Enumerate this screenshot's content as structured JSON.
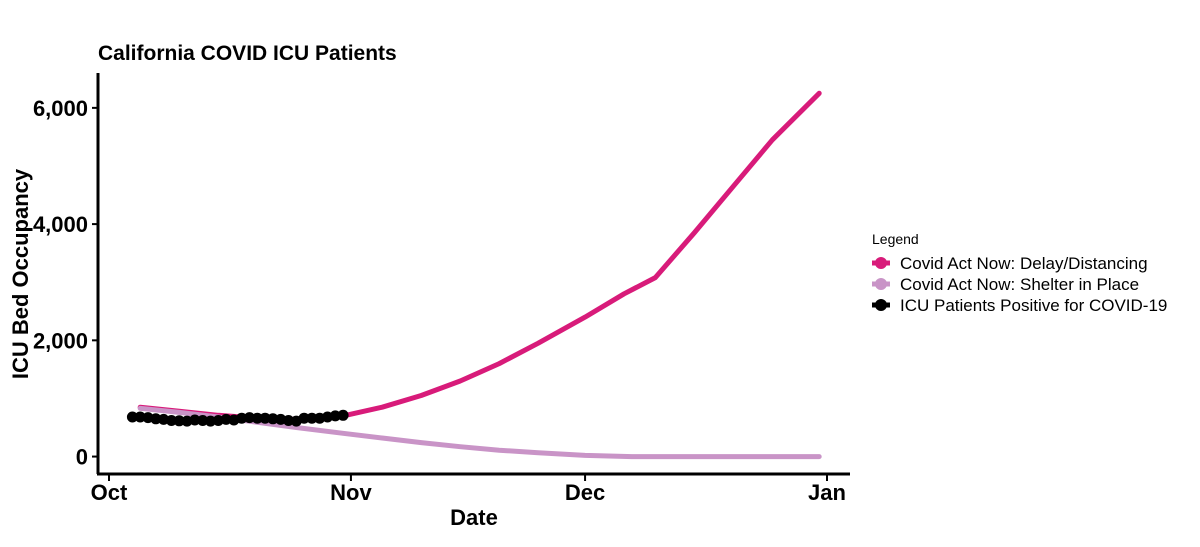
{
  "chart_data": {
    "type": "line",
    "title": "California COVID ICU Patients",
    "xlabel": "Date",
    "ylabel": "ICU Bed Occupancy",
    "xlim": [
      "2020-10-01",
      "2021-01-01"
    ],
    "ylim": [
      -300,
      6600
    ],
    "x_ticks": [
      "Oct",
      "Nov",
      "Dec",
      "Jan"
    ],
    "y_ticks": [
      {
        "value": 0,
        "label": "0"
      },
      {
        "value": 2000,
        "label": "2,000"
      },
      {
        "value": 4000,
        "label": "4,000"
      },
      {
        "value": 6000,
        "label": "6,000"
      }
    ],
    "grid": false,
    "legend": {
      "title": "Legend",
      "position": "right"
    },
    "series": [
      {
        "name": "Covid Act Now: Delay/Distancing",
        "color": "#d81b7a",
        "style": "line",
        "points": [
          {
            "x": "2020-10-05",
            "y": 850
          },
          {
            "x": "2020-10-10",
            "y": 780
          },
          {
            "x": "2020-10-15",
            "y": 710
          },
          {
            "x": "2020-10-20",
            "y": 660
          },
          {
            "x": "2020-10-25",
            "y": 640
          },
          {
            "x": "2020-10-31",
            "y": 700
          },
          {
            "x": "2020-11-05",
            "y": 850
          },
          {
            "x": "2020-11-10",
            "y": 1050
          },
          {
            "x": "2020-11-15",
            "y": 1300
          },
          {
            "x": "2020-11-20",
            "y": 1600
          },
          {
            "x": "2020-11-25",
            "y": 1950
          },
          {
            "x": "2020-12-01",
            "y": 2400
          },
          {
            "x": "2020-12-06",
            "y": 2800
          },
          {
            "x": "2020-12-10",
            "y": 3080
          },
          {
            "x": "2020-12-15",
            "y": 3850
          },
          {
            "x": "2020-12-20",
            "y": 4650
          },
          {
            "x": "2020-12-25",
            "y": 5450
          },
          {
            "x": "2020-12-31",
            "y": 6250
          }
        ]
      },
      {
        "name": "Covid Act Now: Shelter in Place",
        "color": "#c994c7",
        "style": "line",
        "points": [
          {
            "x": "2020-10-05",
            "y": 830
          },
          {
            "x": "2020-10-10",
            "y": 760
          },
          {
            "x": "2020-10-15",
            "y": 680
          },
          {
            "x": "2020-10-20",
            "y": 590
          },
          {
            "x": "2020-10-25",
            "y": 500
          },
          {
            "x": "2020-10-31",
            "y": 400
          },
          {
            "x": "2020-11-05",
            "y": 320
          },
          {
            "x": "2020-11-10",
            "y": 240
          },
          {
            "x": "2020-11-15",
            "y": 170
          },
          {
            "x": "2020-11-20",
            "y": 110
          },
          {
            "x": "2020-11-25",
            "y": 65
          },
          {
            "x": "2020-12-01",
            "y": 20
          },
          {
            "x": "2020-12-07",
            "y": 0
          },
          {
            "x": "2020-12-15",
            "y": 0
          },
          {
            "x": "2020-12-23",
            "y": 0
          },
          {
            "x": "2020-12-31",
            "y": 0
          }
        ]
      },
      {
        "name": "ICU Patients Positive for COVID-19",
        "color": "#000000",
        "style": "line+points",
        "points": [
          {
            "x": "2020-10-04",
            "y": 680
          },
          {
            "x": "2020-10-05",
            "y": 680
          },
          {
            "x": "2020-10-06",
            "y": 670
          },
          {
            "x": "2020-10-07",
            "y": 650
          },
          {
            "x": "2020-10-08",
            "y": 640
          },
          {
            "x": "2020-10-09",
            "y": 620
          },
          {
            "x": "2020-10-10",
            "y": 615
          },
          {
            "x": "2020-10-11",
            "y": 610
          },
          {
            "x": "2020-10-12",
            "y": 630
          },
          {
            "x": "2020-10-13",
            "y": 620
          },
          {
            "x": "2020-10-14",
            "y": 610
          },
          {
            "x": "2020-10-15",
            "y": 620
          },
          {
            "x": "2020-10-16",
            "y": 640
          },
          {
            "x": "2020-10-17",
            "y": 630
          },
          {
            "x": "2020-10-18",
            "y": 660
          },
          {
            "x": "2020-10-19",
            "y": 670
          },
          {
            "x": "2020-10-20",
            "y": 660
          },
          {
            "x": "2020-10-21",
            "y": 660
          },
          {
            "x": "2020-10-22",
            "y": 650
          },
          {
            "x": "2020-10-23",
            "y": 640
          },
          {
            "x": "2020-10-24",
            "y": 620
          },
          {
            "x": "2020-10-25",
            "y": 610
          },
          {
            "x": "2020-10-26",
            "y": 660
          },
          {
            "x": "2020-10-27",
            "y": 660
          },
          {
            "x": "2020-10-28",
            "y": 660
          },
          {
            "x": "2020-10-29",
            "y": 680
          },
          {
            "x": "2020-10-30",
            "y": 700
          },
          {
            "x": "2020-10-31",
            "y": 710
          }
        ]
      }
    ]
  }
}
